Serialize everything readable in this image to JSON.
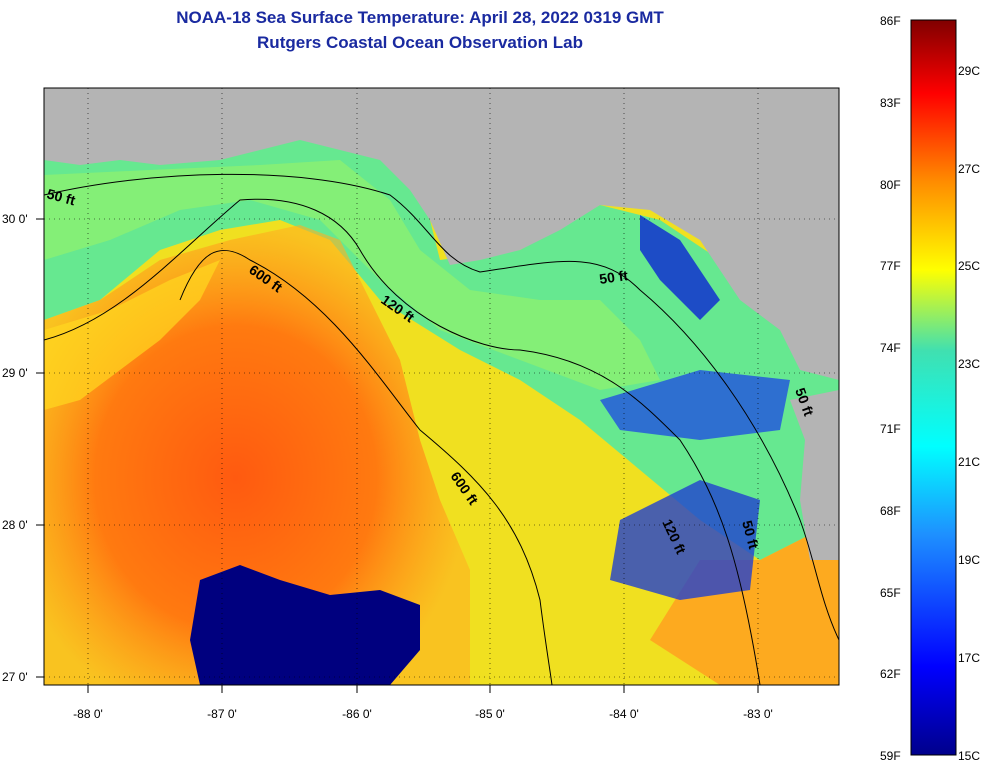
{
  "title": {
    "line1": "NOAA-18 Sea Surface Temperature:  April 28, 2022 0319 GMT",
    "line2": "Rutgers Coastal Ocean Observation Lab"
  },
  "axes": {
    "lon_labels": [
      "-88 0'",
      "-87 0'",
      "-86 0'",
      "-85 0'",
      "-84 0'",
      "-83 0'"
    ],
    "lat_labels": [
      "30 0'",
      "29 0'",
      "28 0'",
      "27 0'"
    ]
  },
  "contours": [
    {
      "label": "50 ft"
    },
    {
      "label": "600 ft"
    },
    {
      "label": "120 ft"
    },
    {
      "label": "50 ft"
    },
    {
      "label": "600 ft"
    },
    {
      "label": "120 ft"
    },
    {
      "label": "50 ft"
    },
    {
      "label": "50 ft"
    }
  ],
  "colorbar": {
    "fahrenheit": [
      "86F",
      "83F",
      "80F",
      "77F",
      "74F",
      "71F",
      "68F",
      "65F",
      "62F",
      "59F"
    ],
    "celsius": [
      "29C",
      "27C",
      "25C",
      "23C",
      "21C",
      "19C",
      "17C",
      "15C"
    ]
  },
  "colors": {
    "land": "#b4b4b4",
    "title": "#1a2aa0",
    "cloud_mask": "#00007f",
    "warm": "#ff6010",
    "cool": "#40e0b0"
  }
}
